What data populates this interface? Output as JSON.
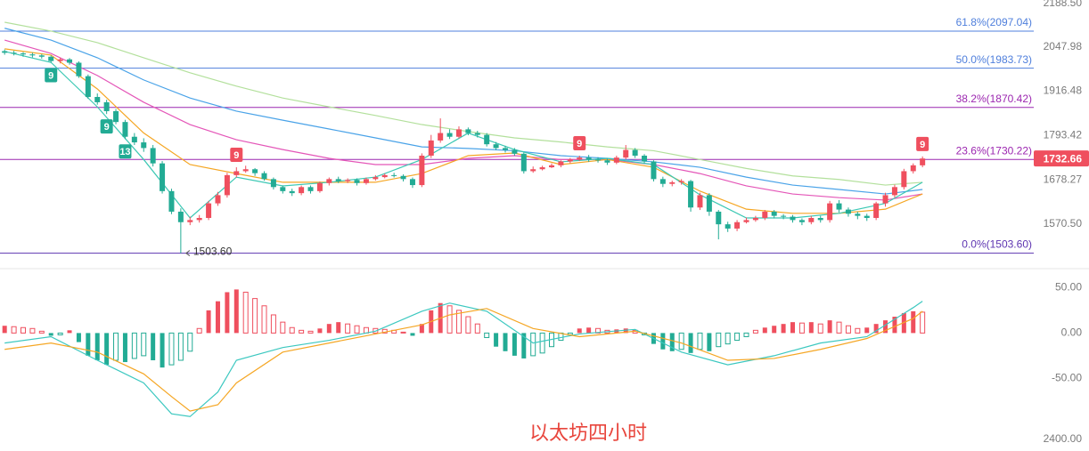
{
  "chart_data": [
    {
      "type": "candlestick",
      "log_scale": true,
      "ylim": [
        1473,
        2197
      ],
      "xlim": [
        -0.5,
        111
      ],
      "yticks": [
        {
          "value": 2188.5,
          "label": "2188.50"
        },
        2047.98,
        1916.48,
        1793.42,
        1678.27,
        {
          "value": 1570.5,
          "label": "1570.50"
        }
      ],
      "up_color": "#ef4f5e",
      "down_color": "#22ab94",
      "open": [
        2035,
        2030,
        2028,
        2025,
        2022,
        2018,
        2005,
        2010,
        2000,
        1960,
        1900,
        1885,
        1860,
        1830,
        1790,
        1775,
        1760,
        1720,
        1650,
        1600,
        1575,
        1580,
        1585,
        1620,
        1640,
        1690,
        1700,
        1705,
        1695,
        1680,
        1660,
        1650,
        1645,
        1660,
        1650,
        1670,
        1680,
        1675,
        1678,
        1670,
        1680,
        1685,
        1690,
        1688,
        1680,
        1665,
        1740,
        1780,
        1800,
        1790,
        1810,
        1800,
        1795,
        1770,
        1760,
        1755,
        1745,
        1700,
        1705,
        1710,
        1715,
        1725,
        1730,
        1735,
        1730,
        1728,
        1722,
        1735,
        1755,
        1740,
        1725,
        1680,
        1668,
        1672,
        1675,
        1610,
        1640,
        1600,
        1570,
        1560,
        1575,
        1580,
        1585,
        1600,
        1590,
        1588,
        1580,
        1575,
        1585,
        1580,
        1620,
        1605,
        1595,
        1590,
        1585,
        1620,
        1640,
        1660,
        1700,
        1715
      ],
      "high": [
        2040,
        2036,
        2032,
        2030,
        2026,
        2022,
        2015,
        2014,
        2004,
        1965,
        1910,
        1892,
        1866,
        1836,
        1800,
        1786,
        1768,
        1726,
        1656,
        1608,
        1588,
        1592,
        1626,
        1648,
        1696,
        1710,
        1714,
        1708,
        1700,
        1684,
        1664,
        1656,
        1664,
        1664,
        1674,
        1684,
        1686,
        1682,
        1682,
        1684,
        1690,
        1694,
        1696,
        1692,
        1684,
        1746,
        1795,
        1840,
        1810,
        1818,
        1815,
        1806,
        1800,
        1776,
        1766,
        1760,
        1748,
        1712,
        1714,
        1720,
        1728,
        1734,
        1740,
        1742,
        1736,
        1732,
        1740,
        1768,
        1760,
        1744,
        1728,
        1686,
        1676,
        1680,
        1678,
        1646,
        1645,
        1604,
        1576,
        1580,
        1586,
        1590,
        1604,
        1604,
        1594,
        1592,
        1584,
        1590,
        1590,
        1626,
        1628,
        1610,
        1600,
        1595,
        1624,
        1646,
        1666,
        1706,
        1720,
        1738
      ],
      "low": [
        2024,
        2022,
        2018,
        2016,
        2012,
        2000,
        1998,
        1994,
        1955,
        1895,
        1878,
        1852,
        1824,
        1784,
        1768,
        1750,
        1712,
        1644,
        1594,
        1503.6,
        1568,
        1574,
        1580,
        1614,
        1634,
        1684,
        1696,
        1688,
        1676,
        1654,
        1644,
        1638,
        1640,
        1644,
        1646,
        1664,
        1670,
        1670,
        1664,
        1666,
        1676,
        1682,
        1684,
        1674,
        1658,
        1660,
        1734,
        1774,
        1784,
        1786,
        1794,
        1788,
        1764,
        1754,
        1748,
        1740,
        1694,
        1696,
        1702,
        1708,
        1710,
        1720,
        1726,
        1724,
        1722,
        1716,
        1718,
        1730,
        1734,
        1720,
        1674,
        1660,
        1662,
        1666,
        1600,
        1604,
        1590,
        1535,
        1552,
        1554,
        1572,
        1576,
        1580,
        1584,
        1582,
        1574,
        1568,
        1570,
        1574,
        1574,
        1598,
        1588,
        1582,
        1578,
        1580,
        1612,
        1634,
        1654,
        1694,
        1710
      ],
      "close": [
        2030,
        2028,
        2025,
        2022,
        2018,
        2005,
        2010,
        2000,
        1960,
        1900,
        1885,
        1860,
        1830,
        1790,
        1775,
        1760,
        1720,
        1650,
        1600,
        1575,
        1580,
        1585,
        1620,
        1640,
        1690,
        1700,
        1705,
        1695,
        1680,
        1660,
        1650,
        1645,
        1660,
        1650,
        1670,
        1680,
        1675,
        1678,
        1670,
        1680,
        1685,
        1690,
        1688,
        1680,
        1665,
        1740,
        1780,
        1800,
        1790,
        1810,
        1800,
        1795,
        1770,
        1760,
        1755,
        1745,
        1700,
        1705,
        1710,
        1715,
        1725,
        1730,
        1735,
        1730,
        1728,
        1722,
        1735,
        1755,
        1740,
        1725,
        1680,
        1668,
        1672,
        1675,
        1610,
        1640,
        1600,
        1570,
        1560,
        1575,
        1580,
        1585,
        1600,
        1590,
        1588,
        1580,
        1575,
        1585,
        1580,
        1620,
        1605,
        1595,
        1590,
        1585,
        1620,
        1640,
        1660,
        1700,
        1715,
        1732.66
      ],
      "ma_x": [
        0,
        5,
        10,
        15,
        20,
        25,
        30,
        35,
        40,
        45,
        50,
        55,
        60,
        65,
        70,
        75,
        80,
        85,
        90,
        95,
        99
      ],
      "ma_lines": [
        {
          "color": "#b3e09c",
          "values": [
            2125,
            2097,
            2061,
            2015,
            1970,
            1931,
            1897,
            1872,
            1848,
            1823,
            1804,
            1787,
            1776,
            1763,
            1753,
            1730,
            1707,
            1688,
            1679,
            1665,
            1672
          ]
        },
        {
          "color": "#4aa3e8",
          "values": [
            2106,
            2069,
            2015,
            1949,
            1897,
            1860,
            1835,
            1811,
            1787,
            1763,
            1759,
            1753,
            1740,
            1733,
            1724,
            1710,
            1685,
            1665,
            1654,
            1643,
            1654
          ]
        },
        {
          "color": "#e456b8",
          "values": [
            2069,
            2028,
            1962,
            1885,
            1823,
            1782,
            1756,
            1733,
            1717,
            1717,
            1733,
            1740,
            1730,
            1730,
            1717,
            1694,
            1663,
            1643,
            1634,
            1628,
            1643
          ]
        },
        {
          "color": "#f5a623",
          "values": [
            2042,
            2023,
            1923,
            1800,
            1717,
            1694,
            1672,
            1672,
            1672,
            1694,
            1740,
            1747,
            1717,
            1730,
            1710,
            1650,
            1606,
            1596,
            1596,
            1606,
            1643
          ]
        },
        {
          "color": "#3cc8b4",
          "values": [
            2034,
            2001,
            1872,
            1730,
            1585,
            1685,
            1663,
            1672,
            1685,
            1730,
            1800,
            1756,
            1724,
            1733,
            1717,
            1641,
            1585,
            1585,
            1596,
            1620,
            1672
          ]
        }
      ],
      "fib_levels": [
        {
          "label": "61.8%(2097.04)",
          "value": 2097.04,
          "color": "#4f7fdc"
        },
        {
          "label": "50.0%(1983.73)",
          "value": 1983.73,
          "color": "#4f7fdc"
        },
        {
          "label": "38.2%(1870.42)",
          "value": 1870.42,
          "color": "#9c27b0"
        },
        {
          "label": "23.6%(1730.22)",
          "value": 1730.22,
          "color": "#9c27b0"
        },
        {
          "label": "0.0%(1503.60)",
          "value": 1503.6,
          "color": "#5e35b1"
        }
      ],
      "last_price": 1732.66,
      "low_annotation": {
        "value": 1503.6,
        "label": "1503.60",
        "x": 19
      },
      "td_markers": [
        {
          "x": 5,
          "text": "9",
          "side": "below"
        },
        {
          "x": 11,
          "text": "9",
          "side": "below"
        },
        {
          "x": 13,
          "text": "13",
          "side": "below"
        },
        {
          "x": 25,
          "text": "9",
          "side": "above"
        },
        {
          "x": 62,
          "text": "9",
          "side": "above"
        },
        {
          "x": 99,
          "text": "9",
          "side": "above"
        }
      ]
    },
    {
      "type": "macd",
      "ylim": [
        -128,
        68
      ],
      "xlim": [
        -0.5,
        111
      ],
      "yticks": [
        {
          "value": 50,
          "label": "50.00"
        },
        {
          "value": 0,
          "label": "0.00"
        },
        {
          "value": -50,
          "label": "-50.00"
        }
      ],
      "up_color": "#ef4f5e",
      "down_color": "#22ab94",
      "histogram": [
        8,
        7,
        6,
        5,
        2,
        -3,
        -2,
        3,
        -10,
        -25,
        -30,
        -35,
        -30,
        -32,
        -28,
        -25,
        -30,
        -38,
        -35,
        -30,
        -20,
        5,
        25,
        35,
        45,
        48,
        45,
        38,
        30,
        20,
        12,
        6,
        3,
        2,
        5,
        10,
        12,
        10,
        8,
        6,
        5,
        4,
        3,
        1,
        -3,
        10,
        25,
        33,
        30,
        25,
        18,
        10,
        -5,
        -15,
        -20,
        -25,
        -28,
        -25,
        -22,
        -15,
        -8,
        -2,
        5,
        6,
        5,
        3,
        4,
        5,
        3,
        -2,
        -12,
        -18,
        -20,
        -18,
        -22,
        -18,
        -20,
        -15,
        -12,
        -8,
        -4,
        3,
        6,
        8,
        10,
        12,
        11,
        12,
        10,
        14,
        12,
        8,
        5,
        6,
        10,
        14,
        18,
        22,
        24,
        23
      ],
      "x": [
        0,
        5,
        10,
        15,
        18,
        20,
        23,
        25,
        30,
        35,
        40,
        45,
        48,
        52,
        57,
        62,
        68,
        73,
        78,
        83,
        88,
        93,
        98,
        99
      ],
      "series": [
        {
          "color": "#3cc8c0",
          "values": [
            -11,
            -4,
            -30,
            -55,
            -89,
            -92,
            -65,
            -30,
            -16,
            -8,
            2,
            24,
            33,
            24,
            -11,
            -1,
            4,
            -21,
            -35,
            -25,
            -11,
            -4,
            28,
            35
          ]
        },
        {
          "color": "#f5a623",
          "values": [
            -18,
            -11,
            -21,
            -45,
            -70,
            -86,
            -79,
            -55,
            -21,
            -11,
            -1,
            9,
            20,
            27,
            5,
            -4,
            2,
            -11,
            -30,
            -28,
            -18,
            -6,
            16,
            24
          ]
        }
      ],
      "annotation": "以太坊四小时",
      "footer_tick": "2400.00"
    }
  ]
}
